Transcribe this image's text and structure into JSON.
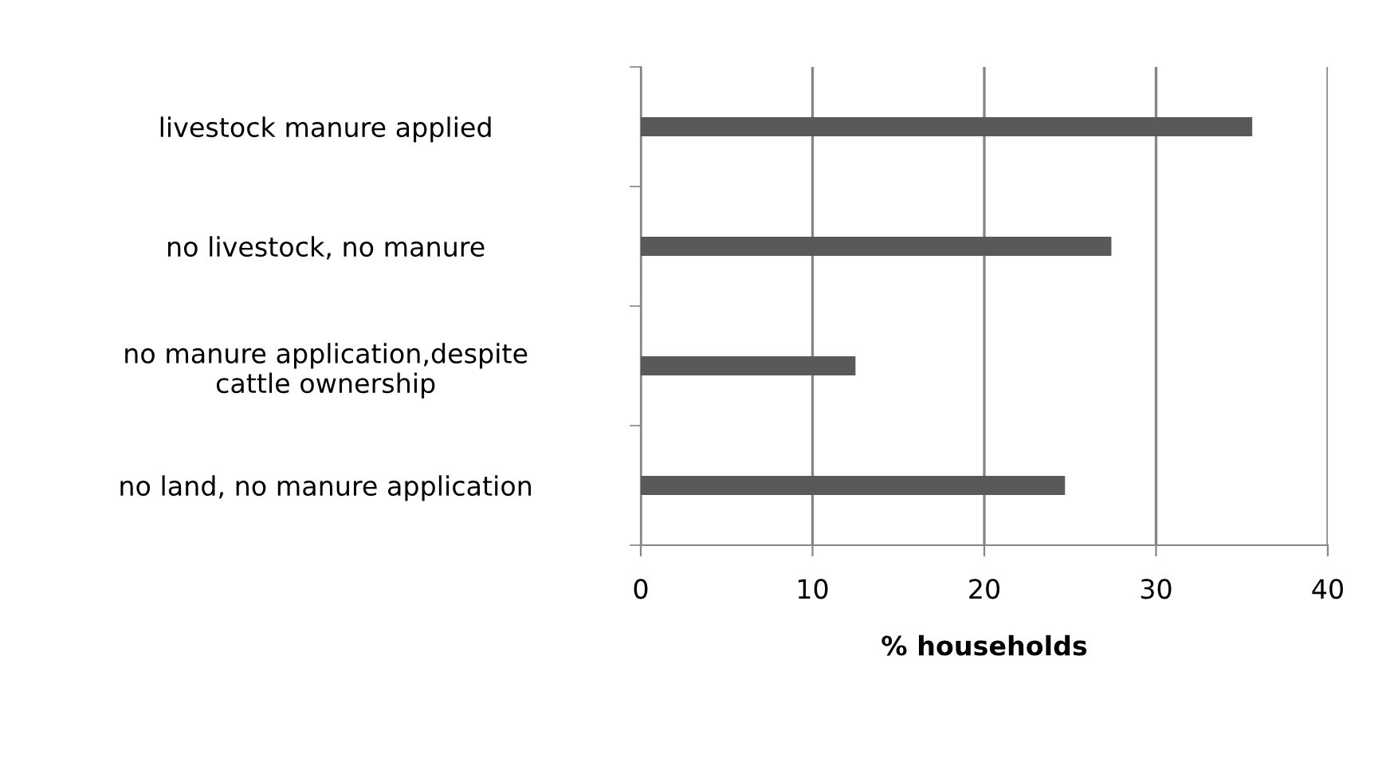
{
  "chart_data": {
    "type": "bar",
    "orientation": "horizontal",
    "xlabel": "% households",
    "categories": [
      "livestock manure applied",
      "no livestock, no manure",
      "no manure application,despite\ncattle ownership",
      "no land, no manure application"
    ],
    "values": [
      35.6,
      27.4,
      12.5,
      24.7
    ],
    "color": "#595959",
    "xlim": [
      0,
      40
    ],
    "xticks": [
      0,
      10,
      20,
      30,
      40
    ],
    "grid": "x"
  }
}
